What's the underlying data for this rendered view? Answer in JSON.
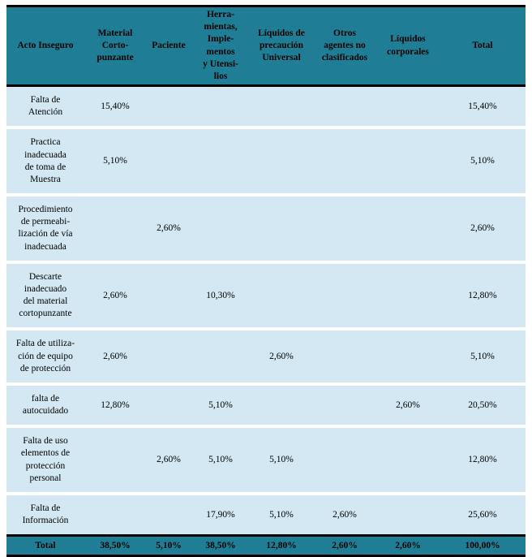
{
  "colors": {
    "header_bg": "#1f7e95",
    "row_bg": "#d3e8f2",
    "footer_bg": "#1f7e95",
    "border": "#000000",
    "row_separator": "#ffffff"
  },
  "table": {
    "columns": [
      "Acto Inseguro",
      "Material\nCorto-\npunzante",
      "Paciente",
      "Herra-\nmientas,\nImple-\nmentos\ny Utensi-\nlios",
      "Líquidos de\nprecaución\nUniversal",
      "Otros\nagentes no\nclasificados",
      "Líquidos\ncorporales",
      "Total"
    ],
    "rows": [
      {
        "label": "Falta de\nAtención",
        "values": [
          "15,40%",
          "",
          "",
          "",
          "",
          "",
          "15,40%"
        ]
      },
      {
        "label": "Practica\ninadecuada\nde toma de\nMuestra",
        "values": [
          "5,10%",
          "",
          "",
          "",
          "",
          "",
          "5,10%"
        ]
      },
      {
        "label": "Procedimiento\nde permeabi-\nlización de vía\ninadecuada",
        "values": [
          "",
          "2,60%",
          "",
          "",
          "",
          "",
          "2,60%"
        ]
      },
      {
        "label": "Descarte\ninadecuado\ndel material\ncortopunzante",
        "values": [
          "2,60%",
          "",
          "10,30%",
          "",
          "",
          "",
          "12,80%"
        ]
      },
      {
        "label": "Falta de utiliza-\nción de equipo\nde protección",
        "values": [
          "2,60%",
          "",
          "",
          "2,60%",
          "",
          "",
          "5,10%"
        ]
      },
      {
        "label": "falta de\nautocuidado",
        "values": [
          "12,80%",
          "",
          "5,10%",
          "",
          "",
          "2,60%",
          "20,50%"
        ]
      },
      {
        "label": "Falta de uso\nelementos de\nprotección\npersonal",
        "values": [
          "",
          "2,60%",
          "5,10%",
          "5,10%",
          "",
          "",
          "12,80%"
        ]
      },
      {
        "label": "Falta de\nInformación",
        "values": [
          "",
          "",
          "17,90%",
          "5,10%",
          "2,60%",
          "",
          "25,60%"
        ]
      }
    ],
    "footer": {
      "label": "Total",
      "values": [
        "38,50%",
        "5,10%",
        "38,50%",
        "12,80%",
        "2,60%",
        "2,60%",
        "100,00%"
      ]
    }
  },
  "chart_data": {
    "type": "table",
    "title": "",
    "columns": [
      "Acto Inseguro",
      "Material Cortopunzante",
      "Paciente",
      "Herramientas, Implementos y Utensilios",
      "Líquidos de precaución Universal",
      "Otros agentes no clasificados",
      "Líquidos corporales",
      "Total"
    ],
    "rows": [
      [
        "Falta de Atención",
        "15,40%",
        "",
        "",
        "",
        "",
        "",
        "15,40%"
      ],
      [
        "Practica inadecuada de toma de Muestra",
        "5,10%",
        "",
        "",
        "",
        "",
        "",
        "5,10%"
      ],
      [
        "Procedimiento de permeabilización de vía inadecuada",
        "",
        "2,60%",
        "",
        "",
        "",
        "",
        "2,60%"
      ],
      [
        "Descarte inadecuado del material cortopunzante",
        "2,60%",
        "",
        "10,30%",
        "",
        "",
        "",
        "12,80%"
      ],
      [
        "Falta de utilización de equipo de protección",
        "2,60%",
        "",
        "",
        "2,60%",
        "",
        "",
        "5,10%"
      ],
      [
        "falta de autocuidado",
        "12,80%",
        "",
        "5,10%",
        "",
        "",
        "2,60%",
        "20,50%"
      ],
      [
        "Falta de uso elementos de protección personal",
        "",
        "2,60%",
        "5,10%",
        "5,10%",
        "",
        "",
        "12,80%"
      ],
      [
        "Falta de Información",
        "",
        "",
        "17,90%",
        "5,10%",
        "2,60%",
        "",
        "25,60%"
      ]
    ],
    "footer": [
      "Total",
      "38,50%",
      "5,10%",
      "38,50%",
      "12,80%",
      "2,60%",
      "2,60%",
      "100,00%"
    ]
  }
}
